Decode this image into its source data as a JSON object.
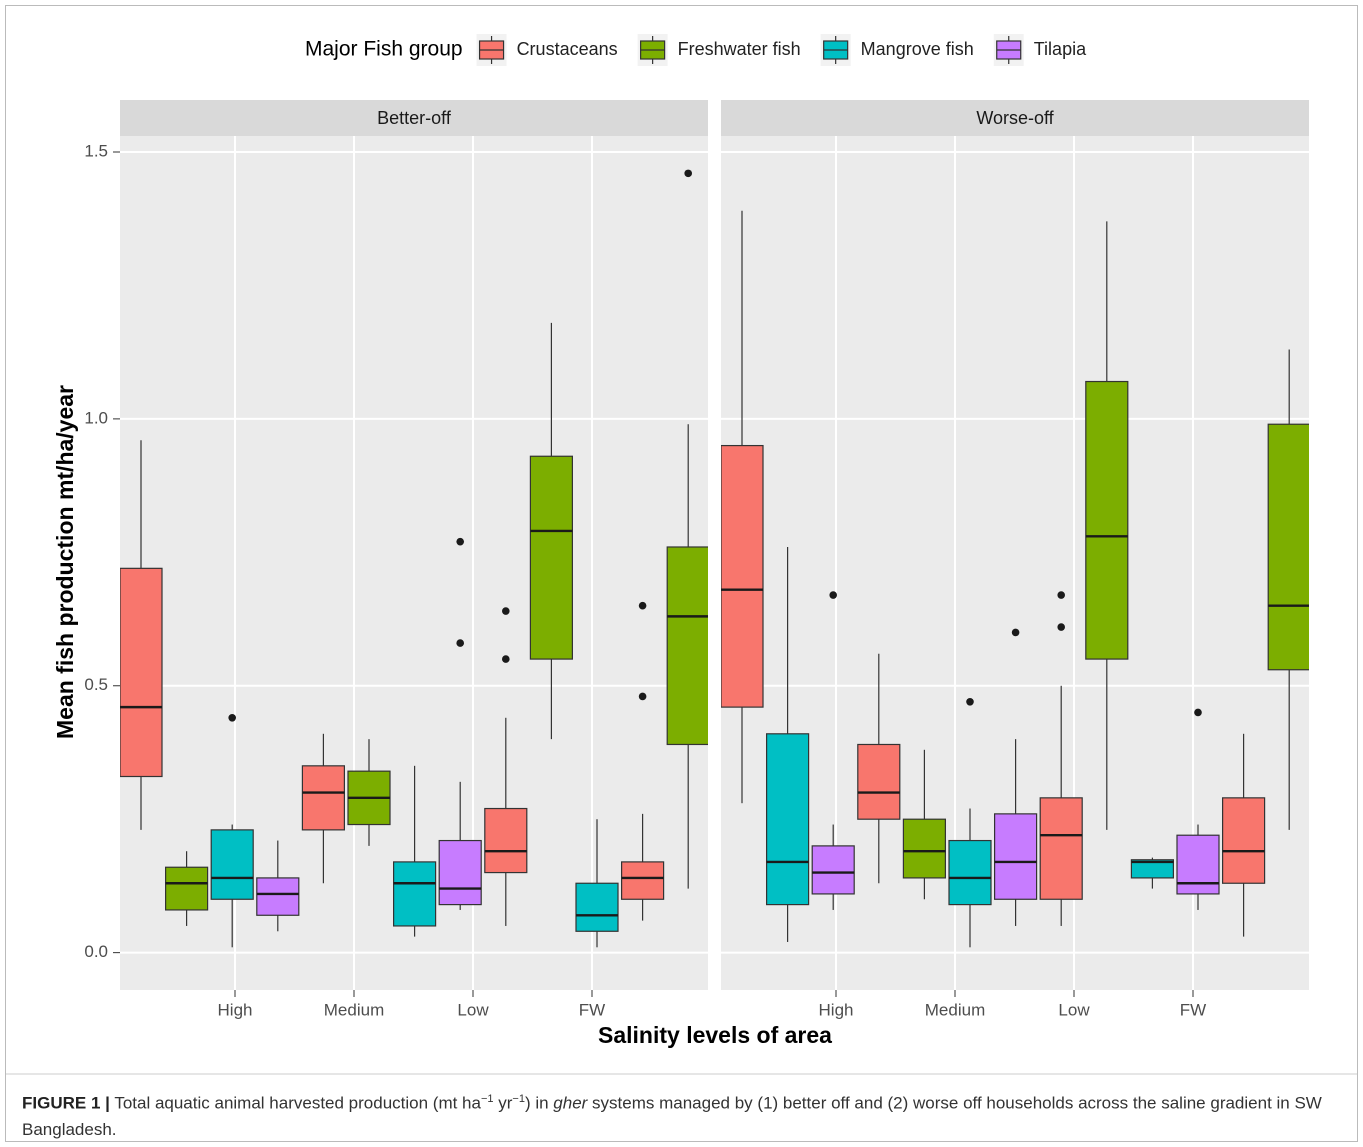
{
  "chart_data": {
    "type": "box",
    "legend_title": "Major Fish group",
    "series": [
      {
        "name": "Crustaceans",
        "color": "#F8766D"
      },
      {
        "name": "Freshwater fish",
        "color": "#7CAE00"
      },
      {
        "name": "Mangrove fish",
        "color": "#00BFC4"
      },
      {
        "name": "Tilapia",
        "color": "#C77CFF"
      }
    ],
    "categories": [
      "High",
      "Medium",
      "Low",
      "FW"
    ],
    "x_label": "Salinity levels of area",
    "y_label": "Mean fish production mt/ha/year",
    "ylim": [
      -0.07,
      1.53
    ],
    "yticks": [
      {
        "value": 0,
        "label": "0.0"
      },
      0.5,
      {
        "value": 1,
        "label": "1.0"
      },
      1.5
    ],
    "grid": true,
    "facets": [
      {
        "title": "Better-off",
        "boxes": [
          {
            "group": "Crustaceans",
            "min": 0.23,
            "q1": 0.33,
            "median": 0.46,
            "q3": 0.72,
            "max": 0.96,
            "outliers": []
          },
          {
            "group": "Freshwater fish",
            "min": 0.05,
            "q1": 0.08,
            "median": 0.13,
            "q3": 0.16,
            "max": 0.19,
            "outliers": []
          },
          {
            "group": "Mangrove fish",
            "min": 0.01,
            "q1": 0.1,
            "median": 0.14,
            "q3": 0.23,
            "max": 0.24,
            "outliers": [
              0.44
            ]
          },
          {
            "group": "Tilapia",
            "min": 0.04,
            "q1": 0.07,
            "median": 0.11,
            "q3": 0.14,
            "max": 0.21,
            "outliers": []
          },
          {
            "group": "Crustaceans",
            "min": 0.13,
            "q1": 0.23,
            "median": 0.3,
            "q3": 0.35,
            "max": 0.41,
            "outliers": []
          },
          {
            "group": "Freshwater fish",
            "min": 0.2,
            "q1": 0.24,
            "median": 0.29,
            "q3": 0.34,
            "max": 0.4,
            "outliers": []
          },
          {
            "group": "Mangrove fish",
            "min": 0.03,
            "q1": 0.05,
            "median": 0.13,
            "q3": 0.17,
            "max": 0.35,
            "outliers": []
          },
          {
            "group": "Tilapia",
            "min": 0.08,
            "q1": 0.09,
            "median": 0.12,
            "q3": 0.21,
            "max": 0.32,
            "outliers": [
              0.77,
              0.58
            ]
          },
          {
            "group": "Crustaceans",
            "min": 0.05,
            "q1": 0.15,
            "median": 0.19,
            "q3": 0.27,
            "max": 0.44,
            "outliers": [
              0.64,
              0.55
            ]
          },
          {
            "group": "Freshwater fish",
            "min": 0.4,
            "q1": 0.55,
            "median": 0.79,
            "q3": 0.93,
            "max": 1.18,
            "outliers": []
          },
          {
            "group": "Mangrove fish",
            "min": 0.01,
            "q1": 0.04,
            "median": 0.07,
            "q3": 0.13,
            "max": 0.25,
            "outliers": []
          },
          {
            "group": "Crustaceans",
            "min": 0.06,
            "q1": 0.1,
            "median": 0.14,
            "q3": 0.17,
            "max": 0.26,
            "outliers": [
              0.65,
              0.48
            ]
          },
          {
            "group": "Freshwater fish",
            "min": 0.12,
            "q1": 0.39,
            "median": 0.63,
            "q3": 0.76,
            "max": 0.99,
            "outliers": [
              1.46
            ]
          }
        ]
      },
      {
        "title": "Worse-off",
        "boxes": [
          {
            "group": "Crustaceans",
            "min": 0.28,
            "q1": 0.46,
            "median": 0.68,
            "q3": 0.95,
            "max": 1.39,
            "outliers": []
          },
          {
            "group": "Mangrove fish",
            "min": 0.02,
            "q1": 0.09,
            "median": 0.17,
            "q3": 0.41,
            "max": 0.76,
            "outliers": []
          },
          {
            "group": "Tilapia",
            "min": 0.08,
            "q1": 0.11,
            "median": 0.15,
            "q3": 0.2,
            "max": 0.24,
            "outliers": [
              0.67
            ]
          },
          {
            "group": "Crustaceans",
            "min": 0.13,
            "q1": 0.25,
            "median": 0.3,
            "q3": 0.39,
            "max": 0.56,
            "outliers": []
          },
          {
            "group": "Freshwater fish",
            "min": 0.1,
            "q1": 0.14,
            "median": 0.19,
            "q3": 0.25,
            "max": 0.38,
            "outliers": []
          },
          {
            "group": "Mangrove fish",
            "min": 0.01,
            "q1": 0.09,
            "median": 0.14,
            "q3": 0.21,
            "max": 0.27,
            "outliers": [
              0.47
            ]
          },
          {
            "group": "Tilapia",
            "min": 0.05,
            "q1": 0.1,
            "median": 0.17,
            "q3": 0.26,
            "max": 0.4,
            "outliers": [
              0.6
            ]
          },
          {
            "group": "Crustaceans",
            "min": 0.05,
            "q1": 0.1,
            "median": 0.22,
            "q3": 0.29,
            "max": 0.5,
            "outliers": [
              0.67,
              0.61
            ]
          },
          {
            "group": "Freshwater fish",
            "min": 0.23,
            "q1": 0.55,
            "median": 0.78,
            "q3": 1.07,
            "max": 1.37,
            "outliers": []
          },
          {
            "group": "Mangrove fish",
            "min": 0.12,
            "q1": 0.14,
            "median": 0.17,
            "q3": 0.174,
            "max": 0.178,
            "outliers": []
          },
          {
            "group": "Tilapia",
            "min": 0.08,
            "q1": 0.11,
            "median": 0.13,
            "q3": 0.22,
            "max": 0.24,
            "outliers": [
              0.45
            ]
          },
          {
            "group": "Crustaceans",
            "min": 0.03,
            "q1": 0.13,
            "median": 0.19,
            "q3": 0.29,
            "max": 0.41,
            "outliers": []
          },
          {
            "group": "Freshwater fish",
            "min": 0.23,
            "q1": 0.53,
            "median": 0.65,
            "q3": 0.99,
            "max": 1.13,
            "outliers": []
          }
        ]
      }
    ]
  },
  "caption": {
    "label": "FIGURE 1 |",
    "text_1": "Total aquatic animal harvested production (mt ha",
    "sup_1": "−1",
    "text_2": " yr",
    "sup_2": "−1",
    "text_3": ") in ",
    "italic": "gher",
    "text_4": " systems managed by (1) better off and (2) worse off households across the saline gradient in SW Bangladesh."
  }
}
